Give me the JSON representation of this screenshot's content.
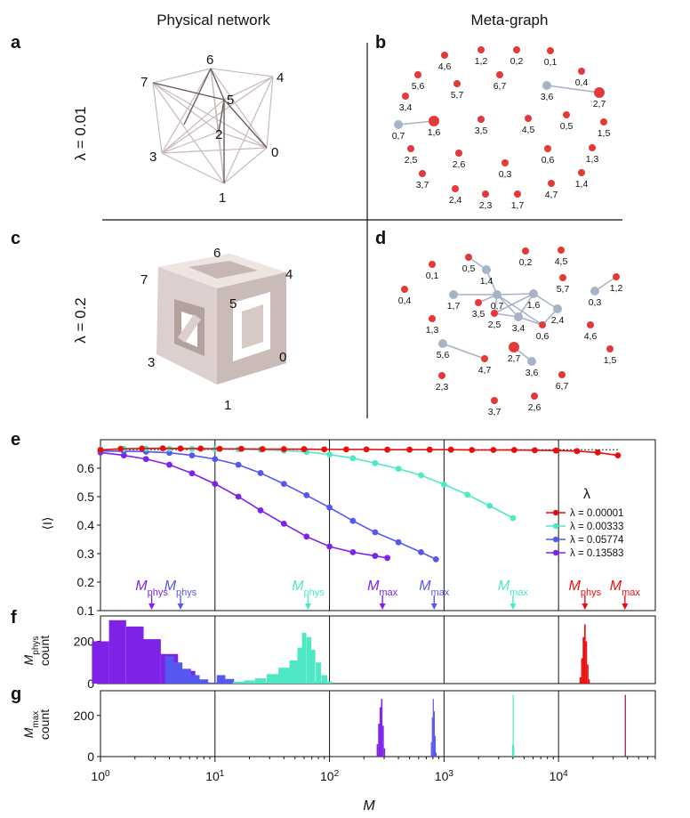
{
  "headers": {
    "physical": "Physical network",
    "meta": "Meta-graph"
  },
  "panel_labels": [
    "a",
    "b",
    "c",
    "d",
    "e",
    "f",
    "g"
  ],
  "row_labels": {
    "top": "λ = 0.01",
    "bottom": "λ = 0.2"
  },
  "physical_nodes": [
    "6",
    "4",
    "7",
    "5",
    "2",
    "3",
    "0",
    "1"
  ],
  "metagraph_b": {
    "labels": [
      "1,2",
      "0,2",
      "0,1",
      "4,6",
      "6,7",
      "0,4",
      "5,6",
      "5,7",
      "3,6",
      "2,7",
      "3,4",
      "0,7",
      "1,6",
      "3,5",
      "4,5",
      "0,5",
      "1,5",
      "2,5",
      "2,6",
      "0,6",
      "1,3",
      "0,3",
      "3,7",
      "1,4",
      "2,4",
      "2,3",
      "1,7",
      "4,7"
    ]
  },
  "metagraph_d": {
    "labels": [
      "0,5",
      "0,2",
      "4,5",
      "1,2",
      "0,1",
      "1,4",
      "0,7",
      "5,7",
      "0,4",
      "1,7",
      "1,6",
      "0,3",
      "3,5",
      "2,4",
      "2,5",
      "3,4",
      "0,6",
      "1,3",
      "4,6",
      "5,6",
      "2,7",
      "1,5",
      "4,7",
      "3,6",
      "6,7",
      "2,3",
      "2,6",
      "3,7"
    ]
  },
  "colors": {
    "red": "#e23a3a",
    "grey": "#a7b3c7",
    "teal": "#4ee8c5",
    "blue": "#5558ee",
    "purple": "#7e22e8",
    "dark_red": "#e80e0e",
    "wine": "#8b1a2a"
  },
  "chart_data": [
    {
      "panel": "e",
      "type": "line",
      "xscale": "log",
      "xlim": [
        1,
        70000
      ],
      "ylim": [
        0.1,
        0.7
      ],
      "yticks": [
        0.1,
        0.2,
        0.3,
        0.4,
        0.5,
        0.6
      ],
      "ylabel": "⟨I⟩",
      "legend_title": "λ",
      "legend_position": "right",
      "reference_line": 0.665,
      "series": [
        {
          "name": "λ = 0.00001",
          "color": "#e80e0e",
          "x": [
            1,
            1.5,
            2.3,
            3.5,
            5,
            7.5,
            11,
            17,
            26,
            40,
            60,
            90,
            140,
            210,
            320,
            500,
            750,
            1150,
            1750,
            2700,
            4100,
            6200,
            9500,
            14500,
            22000,
            33000
          ],
          "y": [
            0.664,
            0.668,
            0.669,
            0.67,
            0.669,
            0.669,
            0.668,
            0.668,
            0.667,
            0.667,
            0.667,
            0.666,
            0.666,
            0.666,
            0.665,
            0.665,
            0.665,
            0.665,
            0.664,
            0.664,
            0.664,
            0.663,
            0.662,
            0.66,
            0.655,
            0.645
          ]
        },
        {
          "name": "λ = 0.00333",
          "color": "#4ee8c5",
          "x": [
            1,
            1.6,
            2.5,
            4,
            6.3,
            10,
            16,
            25,
            40,
            63,
            100,
            160,
            250,
            400,
            630,
            1000,
            1600,
            2500,
            4000
          ],
          "y": [
            0.665,
            0.668,
            0.669,
            0.668,
            0.668,
            0.667,
            0.666,
            0.665,
            0.662,
            0.657,
            0.648,
            0.635,
            0.618,
            0.598,
            0.575,
            0.543,
            0.507,
            0.468,
            0.425
          ]
        },
        {
          "name": "λ = 0.05774",
          "color": "#5558ee",
          "x": [
            1,
            1.6,
            2.5,
            4,
            6.3,
            10,
            16,
            25,
            40,
            63,
            100,
            160,
            250,
            400,
            630,
            850
          ],
          "y": [
            0.66,
            0.66,
            0.658,
            0.654,
            0.645,
            0.632,
            0.612,
            0.583,
            0.545,
            0.505,
            0.462,
            0.415,
            0.375,
            0.34,
            0.305,
            0.28
          ]
        },
        {
          "name": "λ = 0.13583",
          "color": "#7e22e8",
          "x": [
            1,
            1.6,
            2.5,
            4,
            6.3,
            10,
            16,
            25,
            40,
            63,
            100,
            160,
            250,
            320
          ],
          "y": [
            0.655,
            0.645,
            0.632,
            0.612,
            0.582,
            0.545,
            0.5,
            0.452,
            0.405,
            0.36,
            0.325,
            0.305,
            0.292,
            0.285
          ]
        }
      ],
      "annotations": [
        {
          "text": "M",
          "sub": "phys",
          "x": 2.8,
          "color": "#7e22e8"
        },
        {
          "text": "M",
          "sub": "phys",
          "x": 5,
          "color": "#5558ee"
        },
        {
          "text": "M",
          "sub": "phys",
          "x": 65,
          "color": "#4ee8c5"
        },
        {
          "text": "M",
          "sub": "max",
          "x": 290,
          "color": "#7e22e8"
        },
        {
          "text": "M",
          "sub": "max",
          "x": 820,
          "color": "#5558ee"
        },
        {
          "text": "M",
          "sub": "max",
          "x": 4000,
          "color": "#4ee8c5"
        },
        {
          "text": "M",
          "sub": "phys",
          "x": 17000,
          "color": "#e80e0e"
        },
        {
          "text": "M",
          "sub": "max",
          "x": 38000,
          "color": "#e80e0e"
        }
      ]
    },
    {
      "panel": "f",
      "type": "bar",
      "ylabel": "M_phys count",
      "ylim": [
        0,
        320
      ],
      "yticks": [
        0,
        200
      ],
      "xscale": "log",
      "series": [
        {
          "name": "λ = 0.13583",
          "color": "#7e22e8",
          "x": [
            1,
            1.41,
            2,
            2.83,
            4,
            5.66
          ],
          "y": [
            200,
            300,
            270,
            210,
            140,
            60
          ]
        },
        {
          "name": "λ = 0.05774",
          "color": "#5558ee",
          "x": [
            4,
            4.76,
            5.66,
            6.73,
            8,
            9.51,
            11.3,
            13.45,
            16
          ],
          "y": [
            130,
            100,
            70,
            40,
            20,
            5,
            40,
            22,
            8
          ]
        },
        {
          "name": "λ = 0.00333",
          "color": "#4ee8c5",
          "x": [
            16,
            20,
            25,
            32,
            40,
            50,
            55,
            60,
            66,
            72,
            80,
            90,
            100
          ],
          "y": [
            8,
            15,
            25,
            45,
            75,
            110,
            170,
            240,
            220,
            160,
            100,
            40,
            10
          ]
        },
        {
          "name": "λ = 0.00001",
          "color": "#e80e0e",
          "x": [
            15500,
            16000,
            16500,
            17000,
            17500,
            18000,
            18500
          ],
          "y": [
            30,
            120,
            220,
            280,
            200,
            90,
            20
          ]
        }
      ]
    },
    {
      "panel": "g",
      "type": "bar",
      "ylabel": "M_max count",
      "ylim": [
        0,
        320
      ],
      "yticks": [
        0,
        200
      ],
      "xscale": "log",
      "xlabel": "M",
      "xticks": [
        "10^0",
        "10^1",
        "10^2",
        "10^3",
        "10^4"
      ],
      "series": [
        {
          "name": "λ = 0.13583",
          "color": "#7e22e8",
          "x": [
            262,
            270,
            278,
            286,
            294,
            302
          ],
          "y": [
            60,
            160,
            240,
            280,
            150,
            40
          ]
        },
        {
          "name": "λ = 0.05774",
          "color": "#5558ee",
          "x": [
            775,
            790,
            805,
            820,
            835,
            850
          ],
          "y": [
            70,
            190,
            280,
            220,
            100,
            20
          ]
        },
        {
          "name": "λ = 0.00333",
          "color": "#4ee8c5",
          "x": [
            3950,
            4000,
            4050
          ],
          "y": [
            60,
            300,
            50
          ]
        },
        {
          "name": "λ = 0.00001",
          "color": "#8b1a2a",
          "x": [
            38000
          ],
          "y": [
            300
          ]
        }
      ]
    }
  ]
}
